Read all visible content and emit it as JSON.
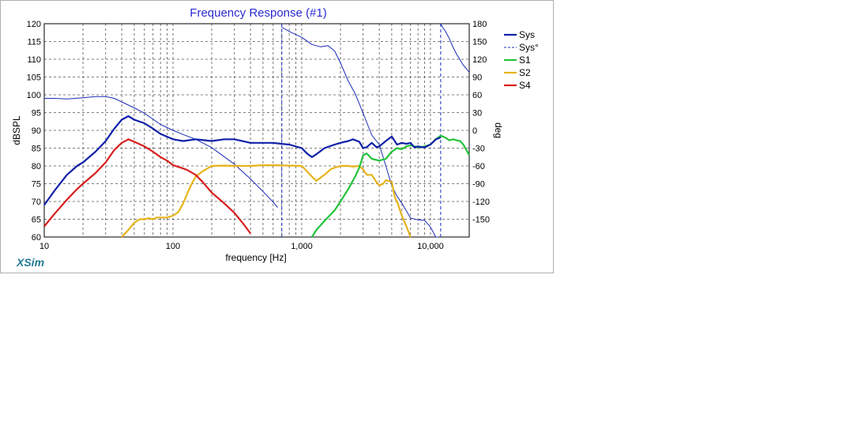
{
  "colors": {
    "sys": "#1020a8",
    "sys_phase": "#1a2bb8",
    "s1": "#22c33a",
    "s2": "#e6b31a",
    "s4": "#d91e1e",
    "title": "#2a2ad0",
    "brand": "#1f7a95",
    "grid": "#555555",
    "frame": "#b0b0b0"
  },
  "brand_label": "XSim",
  "chart_data": {
    "type": "line",
    "title": "Frequency Response (#1)",
    "xlabel": "frequency [Hz]",
    "ylabel": "dBSPL",
    "y2label": "deg",
    "xscale": "log",
    "xlim": [
      10,
      20000
    ],
    "ylim": [
      60,
      120
    ],
    "y2lim": [
      -180,
      180
    ],
    "grid": true,
    "legend_position": "right",
    "x_ticks": [
      {
        "value": 10,
        "label": "10"
      },
      {
        "value": 100,
        "label": "100"
      },
      {
        "value": 1000,
        "label": "1,000"
      },
      {
        "value": 10000,
        "label": "10,000"
      }
    ],
    "y_ticks": [
      "60",
      "65",
      "70",
      "75",
      "80",
      "85",
      "90",
      "95",
      "100",
      "105",
      "110",
      "115",
      "120"
    ],
    "y2_ticks": [
      "-150",
      "-120",
      "-90",
      "-60",
      "-30",
      "0",
      "30",
      "60",
      "90",
      "120",
      "150",
      "180"
    ],
    "legend": [
      {
        "key": "sys",
        "label": "Sys",
        "style": "solid"
      },
      {
        "key": "sys_phase",
        "label": "Sys°",
        "style": "dashed"
      },
      {
        "key": "s1",
        "label": "S1",
        "style": "solid"
      },
      {
        "key": "s2",
        "label": "S2",
        "style": "solid"
      },
      {
        "key": "s4",
        "label": "S4",
        "style": "solid"
      }
    ],
    "series": [
      {
        "key": "sys",
        "name": "Sys",
        "axis": "left",
        "x": [
          10,
          12,
          15,
          18,
          20,
          25,
          30,
          35,
          40,
          45,
          50,
          60,
          70,
          80,
          100,
          120,
          150,
          200,
          250,
          300,
          400,
          500,
          600,
          700,
          800,
          1000,
          1100,
          1200,
          1300,
          1500,
          1800,
          2000,
          2300,
          2500,
          2800,
          3000,
          3200,
          3500,
          3800,
          4000,
          4500,
          5000,
          5500,
          6000,
          6500,
          7000,
          7500,
          8000,
          8500,
          9000,
          10000,
          11000,
          12000
        ],
        "y": [
          69,
          73,
          77.5,
          80,
          81,
          84,
          87,
          90.5,
          93,
          94,
          93,
          92,
          90.5,
          89,
          87.5,
          87,
          87.5,
          87,
          87.5,
          87.5,
          86.5,
          86.5,
          86.5,
          86.2,
          86,
          85,
          83.5,
          82.5,
          83.3,
          85,
          86,
          86.5,
          87,
          87.5,
          86.8,
          85,
          85.3,
          86.5,
          85.3,
          85.5,
          87,
          88.3,
          86,
          86.5,
          86.2,
          86.5,
          85.2,
          85.5,
          85.3,
          85.2,
          86,
          87.5,
          88
        ]
      },
      {
        "key": "sys_phase",
        "name": "Sys°",
        "axis": "right",
        "x": [
          10,
          12,
          15,
          20,
          25,
          30,
          35,
          40,
          50,
          60,
          80,
          100,
          120,
          150,
          200,
          300,
          400,
          500,
          600,
          650,
          700,
          800,
          1000,
          1200,
          1400,
          1600,
          1800,
          2000,
          2300,
          2600,
          3000,
          3500,
          4000,
          4500,
          5000,
          5500,
          6000,
          7000,
          8000,
          9000,
          10000,
          11000,
          11500,
          12000,
          12500,
          13000,
          14000,
          15000,
          16000,
          17000,
          18000,
          19000,
          20000
        ],
        "y": [
          54,
          54,
          53,
          55,
          57,
          57,
          54,
          48,
          38,
          29,
          10,
          0,
          -7,
          -15,
          -29,
          -57,
          -82,
          -103,
          -121,
          -130,
          174,
          167,
          157,
          145,
          141,
          143,
          134,
          114,
          83,
          62,
          29,
          -8,
          -24,
          -60,
          -93,
          -111,
          -123,
          -148,
          -151,
          -152,
          -163,
          -186,
          -200,
          180,
          173,
          168,
          155,
          140,
          128,
          119,
          110,
          104,
          98
        ]
      },
      {
        "key": "s1",
        "name": "S1",
        "axis": "left",
        "x": [
          1200,
          1300,
          1500,
          1800,
          2000,
          2300,
          2600,
          2800,
          3000,
          3200,
          3500,
          4000,
          4500,
          5000,
          5500,
          6000,
          6500,
          7000,
          8000,
          9000,
          10000,
          11000,
          12000,
          13000,
          14000,
          15000,
          16000,
          17000,
          18000,
          19000,
          20000
        ],
        "y": [
          60,
          62,
          64.5,
          67.5,
          70,
          73.5,
          77,
          79.5,
          83,
          83.5,
          82,
          81.5,
          82,
          84,
          85,
          84.7,
          85.5,
          85.8,
          85.2,
          85.5,
          86,
          87.5,
          88.5,
          88,
          87.2,
          87.5,
          87.2,
          87,
          86,
          84.5,
          83
        ]
      },
      {
        "key": "s2",
        "name": "S2",
        "axis": "left",
        "x": [
          40,
          45,
          50,
          55,
          60,
          65,
          70,
          75,
          80,
          90,
          100,
          110,
          120,
          130,
          140,
          150,
          170,
          200,
          250,
          300,
          400,
          500,
          600,
          800,
          1000,
          1200,
          1300,
          1500,
          1700,
          2000,
          2300,
          2500,
          2800,
          3000,
          3200,
          3500,
          3800,
          4000,
          4300,
          4500,
          5000,
          5300,
          5500,
          6000,
          6500,
          7000
        ],
        "y": [
          60,
          62,
          64,
          65,
          65,
          65.3,
          65,
          65.5,
          65.5,
          65.5,
          66,
          67,
          69.5,
          72.5,
          75,
          77,
          78.5,
          80,
          80.1,
          80,
          80,
          80.2,
          80.2,
          80.1,
          80,
          77,
          75.8,
          77.5,
          79.2,
          80,
          80,
          79.8,
          80,
          79,
          77.5,
          77.5,
          75.5,
          74.5,
          75,
          76,
          75.5,
          71,
          70,
          66,
          63,
          60
        ]
      },
      {
        "key": "s4",
        "name": "S4",
        "axis": "left",
        "x": [
          10,
          12,
          15,
          18,
          20,
          25,
          30,
          35,
          40,
          45,
          50,
          60,
          70,
          80,
          90,
          100,
          120,
          130,
          150,
          170,
          200,
          250,
          300,
          350,
          400
        ],
        "y": [
          63,
          66.5,
          70.5,
          73.5,
          75,
          78,
          81,
          84.5,
          86.5,
          87.5,
          86.8,
          85.5,
          84,
          82.5,
          81.5,
          80.2,
          79.3,
          78.8,
          77.5,
          75.5,
          72.5,
          69.5,
          66.8,
          63.8,
          61
        ]
      }
    ]
  }
}
